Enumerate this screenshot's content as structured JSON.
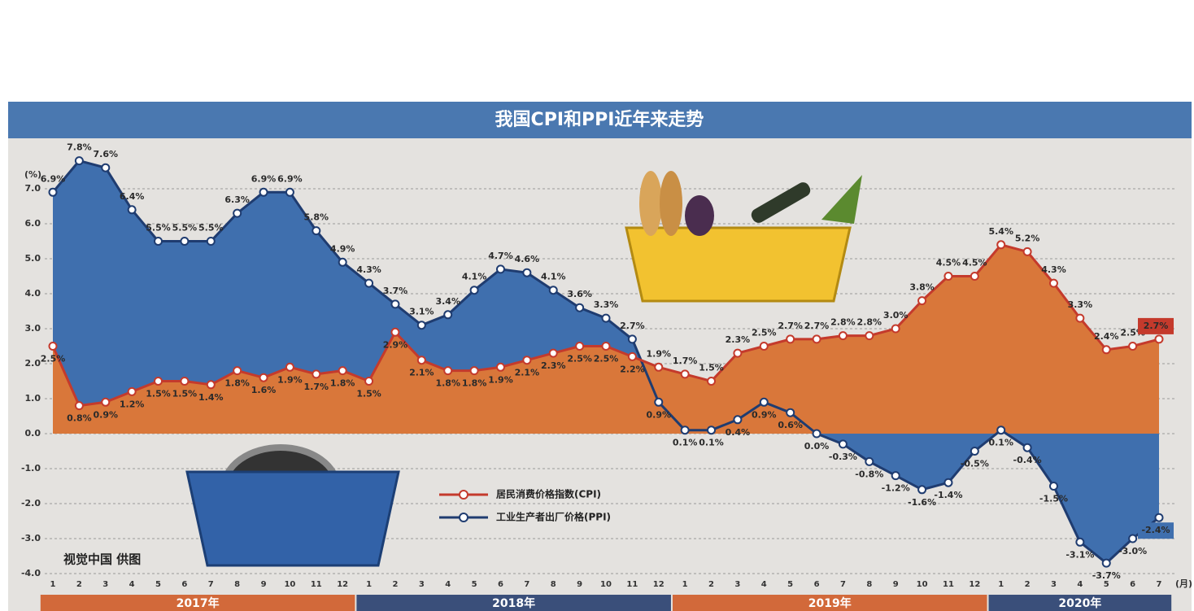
{
  "chart_data": {
    "type": "area-line",
    "title": "我国CPI和PPI近年来走势",
    "y_unit_label": "(%)",
    "x_unit_label": "(月)",
    "credit": "视觉中国 供图",
    "categories": [
      "1",
      "2",
      "3",
      "4",
      "5",
      "6",
      "7",
      "8",
      "9",
      "10",
      "11",
      "12",
      "1",
      "2",
      "3",
      "4",
      "5",
      "6",
      "7",
      "8",
      "9",
      "10",
      "11",
      "12",
      "1",
      "2",
      "3",
      "4",
      "5",
      "6",
      "7",
      "8",
      "9",
      "10",
      "11",
      "12",
      "1",
      "2",
      "3",
      "4",
      "5",
      "6",
      "7"
    ],
    "year_bands": [
      {
        "label": "2017年",
        "months": 12,
        "color": "#d2693a"
      },
      {
        "label": "2018年",
        "months": 12,
        "color": "#3a4f7a"
      },
      {
        "label": "2019年",
        "months": 12,
        "color": "#d2693a"
      },
      {
        "label": "2020年",
        "months": 7,
        "color": "#3a4f7a"
      }
    ],
    "series": [
      {
        "name": "工业生产者出厂价格(PPI)",
        "color": "#1f3c70",
        "fill": "#3f6fae",
        "values": [
          6.9,
          7.8,
          7.6,
          6.4,
          5.5,
          5.5,
          5.5,
          6.3,
          6.9,
          6.9,
          5.8,
          4.9,
          4.3,
          3.7,
          3.1,
          3.4,
          4.1,
          4.7,
          4.6,
          4.1,
          3.6,
          3.3,
          2.7,
          0.9,
          0.1,
          0.1,
          0.4,
          0.9,
          0.6,
          0.0,
          -0.3,
          -0.8,
          -1.2,
          -1.6,
          -1.4,
          -0.5,
          0.1,
          -0.4,
          -1.5,
          -3.1,
          -3.7,
          -3.0,
          -2.4
        ],
        "value_labels": [
          "6.9%",
          "7.8%",
          "7.6%",
          "6.4%",
          "5.5%",
          "5.5%",
          "5.5%",
          "6.3%",
          "6.9%",
          "6.9%",
          "5.8%",
          "4.9%",
          "4.3%",
          "3.7%",
          "3.1%",
          "3.4%",
          "4.1%",
          "4.7%",
          "4.6%",
          "4.1%",
          "3.6%",
          "3.3%",
          "2.7%",
          "0.9%",
          "0.1%",
          "0.1%",
          "0.4%",
          "0.9%",
          "0.6%",
          "0.0%",
          "-0.3%",
          "-0.8%",
          "-1.2%",
          "-1.6%",
          "-1.4%",
          "-0.5%",
          "0.1%",
          "-0.4%",
          "-1.5%",
          "-3.1%",
          "-3.7%",
          "-3.0%",
          "-2.4%"
        ]
      },
      {
        "name": "居民消费价格指数(CPI)",
        "color": "#c43a2c",
        "fill": "#d9773a",
        "values": [
          2.5,
          0.8,
          0.9,
          1.2,
          1.5,
          1.5,
          1.4,
          1.8,
          1.6,
          1.9,
          1.7,
          1.8,
          1.5,
          2.9,
          2.1,
          1.8,
          1.8,
          1.9,
          2.1,
          2.3,
          2.5,
          2.5,
          2.2,
          1.9,
          1.7,
          1.5,
          2.3,
          2.5,
          2.7,
          2.7,
          2.8,
          2.8,
          3.0,
          3.8,
          4.5,
          4.5,
          5.4,
          5.2,
          4.3,
          3.3,
          2.4,
          2.5,
          2.7
        ],
        "value_labels": [
          "2.5%",
          "0.8%",
          "0.9%",
          "1.2%",
          "1.5%",
          "1.5%",
          "1.4%",
          "1.8%",
          "1.6%",
          "1.9%",
          "1.7%",
          "1.8%",
          "1.5%",
          "2.9%",
          "2.1%",
          "1.8%",
          "1.8%",
          "1.9%",
          "2.1%",
          "2.3%",
          "2.5%",
          "2.5%",
          "2.2%",
          "1.9%",
          "1.7%",
          "1.5%",
          "2.3%",
          "2.5%",
          "2.7%",
          "2.7%",
          "2.8%",
          "2.8%",
          "3.0%",
          "3.8%",
          "4.5%",
          "4.5%",
          "5.4%",
          "5.2%",
          "4.3%",
          "3.3%",
          "2.4%",
          "2.5%",
          "2.7%"
        ]
      }
    ],
    "ylim": [
      -4,
      8
    ],
    "yticks": [
      {
        "value": 7,
        "label": "7.0"
      },
      {
        "value": 6,
        "label": "6.0"
      },
      {
        "value": 5,
        "label": "5.0"
      },
      {
        "value": 4,
        "label": "4.0"
      },
      {
        "value": 3,
        "label": "3.0"
      },
      {
        "value": 2,
        "label": "2.0"
      },
      {
        "value": 1,
        "label": "1.0"
      },
      {
        "value": 0,
        "label": "0.0"
      },
      {
        "value": -1,
        "label": "-1.0"
      },
      {
        "value": -2,
        "label": "-2.0"
      },
      {
        "value": -3,
        "label": "-3.0"
      },
      {
        "value": -4,
        "label": "-4.0"
      }
    ],
    "grid": true
  }
}
